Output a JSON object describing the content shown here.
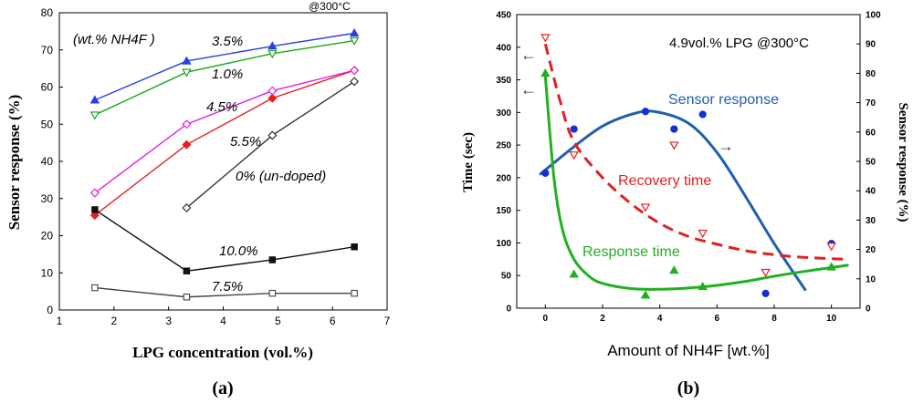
{
  "chart_data": [
    {
      "panel_label": "(a)",
      "type": "line",
      "title": "",
      "xlabel": "LPG concentration (vol.%)",
      "ylabel": "Sensor response (%)",
      "xlim": [
        1,
        7
      ],
      "ylim": [
        0,
        80
      ],
      "xticks": [
        "1",
        "2",
        "3",
        "4",
        "5",
        "6",
        "7"
      ],
      "yticks": [
        "0",
        "10",
        "20",
        "30",
        "40",
        "50",
        "60",
        "70",
        "80"
      ],
      "grid": false,
      "condition_label": "@300°C",
      "legend_title": "(wt.% NH4F )",
      "series": [
        {
          "name": "3.5%",
          "color": "#2a3fe0",
          "marker": "triangle-up-filled",
          "x": [
            1.65,
            3.33,
            4.9,
            6.4
          ],
          "values": [
            56.5,
            67,
            71,
            74.5
          ]
        },
        {
          "name": "1.0%",
          "color": "#1aa51a",
          "marker": "triangle-down-open",
          "x": [
            1.65,
            3.33,
            4.9,
            6.4
          ],
          "values": [
            52.5,
            64,
            69,
            72.5
          ]
        },
        {
          "name": "4.5%",
          "color": "#e52020",
          "marker": "diamond-filled",
          "x": [
            1.65,
            3.33,
            4.9,
            6.4
          ],
          "values": [
            25.5,
            44.5,
            57,
            64.5
          ]
        },
        {
          "name": "5.5%",
          "color": "#e020e0",
          "marker": "diamond-open",
          "x": [
            1.65,
            3.33,
            4.9,
            6.4
          ],
          "values": [
            31.5,
            50,
            59,
            64.5
          ]
        },
        {
          "name": "0% (un-doped)",
          "color": "#333333",
          "marker": "diamond-open",
          "x": [
            3.33,
            4.9,
            6.4
          ],
          "values": [
            27.5,
            47,
            61.5
          ]
        },
        {
          "name": "10.0%",
          "color": "#111111",
          "marker": "square-filled",
          "x": [
            1.65,
            3.33,
            4.9,
            6.4
          ],
          "values": [
            27,
            10.5,
            13.5,
            17
          ]
        },
        {
          "name": "7.5%",
          "color": "#444444",
          "marker": "square-open",
          "x": [
            1.65,
            3.33,
            4.9,
            6.4
          ],
          "values": [
            6,
            3.5,
            4.5,
            4.5
          ]
        }
      ]
    },
    {
      "panel_label": "(b)",
      "type": "scatter",
      "title": "4.9vol.% LPG  @300°C",
      "xlabel": "Amount of NH4F [wt.%]",
      "ylabel": "Time (sec)",
      "y2label": "Sensor response (%)",
      "xlim": [
        -1,
        11
      ],
      "ylim": [
        0,
        450
      ],
      "y2lim": [
        0,
        100
      ],
      "xticks": [
        "0",
        "2",
        "4",
        "6",
        "8",
        "10"
      ],
      "yticks": [
        "0",
        "50",
        "100",
        "150",
        "200",
        "250",
        "300",
        "350",
        "400",
        "450"
      ],
      "y2ticks": [
        "0",
        "10",
        "20",
        "30",
        "40",
        "50",
        "60",
        "70",
        "80",
        "90",
        "100"
      ],
      "grid": false,
      "series": [
        {
          "name": "Sensor response",
          "axis": "right",
          "color": "#1f5fb0",
          "marker_color": "#1530d0",
          "marker": "circle-filled",
          "x": [
            0,
            1,
            3.5,
            4.5,
            5.5,
            7.7,
            10
          ],
          "values": [
            46,
            61,
            67,
            61,
            66,
            5,
            22
          ],
          "fit_x": [
            -0.2,
            1,
            2,
            3,
            3.8,
            5,
            6,
            7,
            8,
            9.1
          ],
          "fit_values": [
            45.5,
            55,
            62,
            66,
            67,
            63,
            53,
            38,
            22,
            6
          ]
        },
        {
          "name": "Recovery time",
          "axis": "left",
          "color": "#e02020",
          "marker": "triangle-down-open",
          "x": [
            0,
            1,
            3.5,
            4.5,
            5.5,
            7.7,
            10
          ],
          "values": [
            415,
            235,
            155,
            250,
            115,
            55,
            95
          ],
          "fit_x": [
            0,
            0.5,
            1,
            2,
            3,
            4,
            5,
            6,
            7,
            8,
            9,
            10.5
          ],
          "fit_values": [
            405,
            320,
            255,
            200,
            160,
            130,
            110,
            98,
            88,
            82,
            78,
            75
          ]
        },
        {
          "name": "Response time",
          "axis": "left",
          "color": "#20b020",
          "marker": "triangle-up-filled",
          "x": [
            0,
            1,
            3.5,
            4.5,
            5.5,
            10
          ],
          "values": [
            360,
            52,
            20,
            58,
            33,
            63
          ],
          "fit_x": [
            0,
            0.3,
            0.6,
            1,
            1.5,
            2,
            3,
            4,
            5,
            6,
            7,
            8,
            9,
            10.6
          ],
          "fit_values": [
            355,
            200,
            120,
            75,
            50,
            38,
            30,
            29,
            31,
            35,
            41,
            49,
            56,
            66
          ]
        }
      ],
      "indicator_arrows": [
        "←",
        "←",
        "→"
      ]
    }
  ]
}
